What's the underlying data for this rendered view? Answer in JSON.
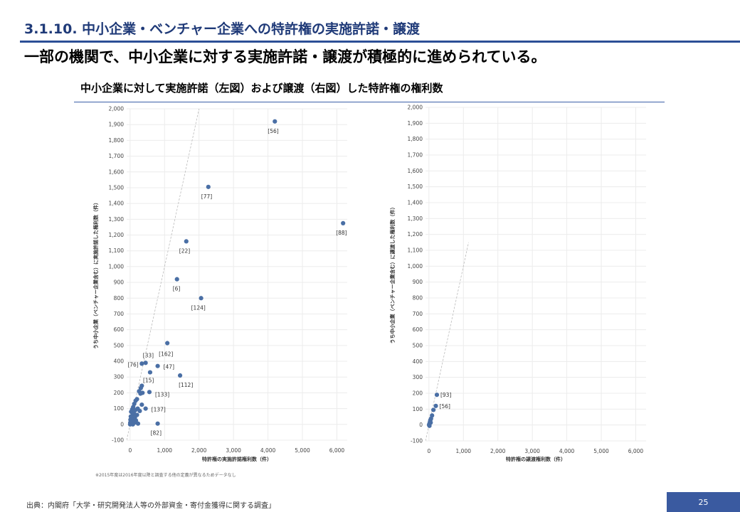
{
  "header": {
    "section_title": "3.1.10. 中小企業・ベンチャー企業への特許権の実施許諾・譲渡",
    "headline": "一部の機関で、中小企業に対する実施許諾・譲渡が積極的に進められている。",
    "chart_heading": "中小企業に対して実施許諾（左図）および譲渡（右図）した特許権の権利数"
  },
  "footer": {
    "note": "※2015年度は2016年度以降と調査する他の定義が異なるためデータなし",
    "source": "出典：内閣府「大学・研究開発法人等の外部資金・寄付金獲得に関する調査」",
    "page_number": "25"
  },
  "colors": {
    "title": "#1f3a78",
    "rule": "#2c4f96",
    "marker": "#4a6fa5",
    "page_badge": "#3a5aa0"
  },
  "chart_data": [
    {
      "type": "scatter",
      "xlabel": "特許権の実施許諾権利数（件）",
      "ylabel": "うち中小企業（ベンチャー企業含む）に実施許諾した権利数（件）",
      "xlim": [
        -100,
        6300
      ],
      "ylim": [
        -100,
        2000
      ],
      "xticks": [
        0,
        1000,
        2000,
        3000,
        4000,
        5000,
        6000
      ],
      "xtick_labels": [
        "0",
        "1,000",
        "2,000",
        "3,000",
        "4,000",
        "5,000",
        "6,000"
      ],
      "yticks": [
        -100,
        0,
        100,
        200,
        300,
        400,
        500,
        600,
        700,
        800,
        900,
        1000,
        1100,
        1200,
        1300,
        1400,
        1500,
        1600,
        1700,
        1800,
        1900,
        2000
      ],
      "ytick_labels": [
        "-100",
        "0",
        "100",
        "200",
        "300",
        "400",
        "500",
        "600",
        "700",
        "800",
        "900",
        "1,000",
        "1,100",
        "1,200",
        "1,300",
        "1,400",
        "1,500",
        "1,600",
        "1,700",
        "1,800",
        "1,900",
        "2,000"
      ],
      "grid": true,
      "reference_line": "y = x",
      "points": [
        {
          "x": 4200,
          "y": 1920,
          "label": "[56]"
        },
        {
          "x": 2270,
          "y": 1505,
          "label": "[77]"
        },
        {
          "x": 6180,
          "y": 1275,
          "label": "[88]"
        },
        {
          "x": 1630,
          "y": 1160,
          "label": "[22]"
        },
        {
          "x": 1360,
          "y": 920,
          "label": "[6]"
        },
        {
          "x": 2060,
          "y": 800,
          "label": "[124]"
        },
        {
          "x": 1080,
          "y": 515,
          "label": "[162]"
        },
        {
          "x": 450,
          "y": 390,
          "label": "[33]"
        },
        {
          "x": 340,
          "y": 385,
          "label": "[76]"
        },
        {
          "x": 800,
          "y": 370,
          "label": "[47]"
        },
        {
          "x": 580,
          "y": 330,
          "label": "[15]"
        },
        {
          "x": 1450,
          "y": 310,
          "label": "[112]"
        },
        {
          "x": 560,
          "y": 205,
          "label": "[133]"
        },
        {
          "x": 450,
          "y": 100,
          "label": "[137]"
        },
        {
          "x": 800,
          "y": 5,
          "label": "[82]"
        },
        {
          "x": 340,
          "y": 245,
          "label": ""
        },
        {
          "x": 310,
          "y": 230,
          "label": ""
        },
        {
          "x": 260,
          "y": 210,
          "label": ""
        },
        {
          "x": 360,
          "y": 200,
          "label": ""
        },
        {
          "x": 300,
          "y": 195,
          "label": ""
        },
        {
          "x": 200,
          "y": 160,
          "label": ""
        },
        {
          "x": 160,
          "y": 150,
          "label": ""
        },
        {
          "x": 120,
          "y": 130,
          "label": ""
        },
        {
          "x": 340,
          "y": 125,
          "label": ""
        },
        {
          "x": 90,
          "y": 110,
          "label": ""
        },
        {
          "x": 220,
          "y": 100,
          "label": ""
        },
        {
          "x": 60,
          "y": 95,
          "label": ""
        },
        {
          "x": 150,
          "y": 90,
          "label": ""
        },
        {
          "x": 280,
          "y": 85,
          "label": ""
        },
        {
          "x": 30,
          "y": 80,
          "label": ""
        },
        {
          "x": 110,
          "y": 70,
          "label": ""
        },
        {
          "x": 200,
          "y": 60,
          "label": ""
        },
        {
          "x": 60,
          "y": 55,
          "label": ""
        },
        {
          "x": 20,
          "y": 50,
          "label": ""
        },
        {
          "x": 140,
          "y": 45,
          "label": ""
        },
        {
          "x": 90,
          "y": 40,
          "label": ""
        },
        {
          "x": 40,
          "y": 35,
          "label": ""
        },
        {
          "x": 10,
          "y": 30,
          "label": ""
        },
        {
          "x": 170,
          "y": 25,
          "label": ""
        },
        {
          "x": 70,
          "y": 20,
          "label": ""
        },
        {
          "x": 30,
          "y": 15,
          "label": ""
        },
        {
          "x": 5,
          "y": 10,
          "label": ""
        },
        {
          "x": 120,
          "y": 10,
          "label": ""
        },
        {
          "x": 50,
          "y": 5,
          "label": ""
        },
        {
          "x": 15,
          "y": 3,
          "label": ""
        },
        {
          "x": 2,
          "y": 0,
          "label": ""
        },
        {
          "x": 80,
          "y": 0,
          "label": ""
        },
        {
          "x": 230,
          "y": 5,
          "label": ""
        },
        {
          "x": 20,
          "y": 20,
          "label": ""
        }
      ]
    },
    {
      "type": "scatter",
      "xlabel": "特許権の譲渡権利数（件）",
      "ylabel": "うち中小企業（ベンチャー企業含む）に譲渡した権利数（件）",
      "xlim": [
        -100,
        6300
      ],
      "ylim": [
        -100,
        2000
      ],
      "xticks": [
        0,
        1000,
        2000,
        3000,
        4000,
        5000,
        6000
      ],
      "xtick_labels": [
        "0",
        "1,000",
        "2,000",
        "3,000",
        "4,000",
        "5,000",
        "6,000"
      ],
      "yticks": [
        -100,
        0,
        100,
        200,
        300,
        400,
        500,
        600,
        700,
        800,
        900,
        1000,
        1100,
        1200,
        1300,
        1400,
        1500,
        1600,
        1700,
        1800,
        1900,
        2000
      ],
      "ytick_labels": [
        "-100",
        "0",
        "100",
        "200",
        "300",
        "400",
        "500",
        "600",
        "700",
        "800",
        "900",
        "1,000",
        "1,100",
        "1,200",
        "1,300",
        "1,400",
        "1,500",
        "1,600",
        "1,700",
        "1,800",
        "1,900",
        "2,000"
      ],
      "grid": true,
      "reference_line": "y = x",
      "points": [
        {
          "x": 230,
          "y": 190,
          "label": "[93]"
        },
        {
          "x": 200,
          "y": 120,
          "label": "[56]"
        },
        {
          "x": 130,
          "y": 95,
          "label": ""
        },
        {
          "x": 90,
          "y": 60,
          "label": ""
        },
        {
          "x": 60,
          "y": 40,
          "label": ""
        },
        {
          "x": 40,
          "y": 30,
          "label": ""
        },
        {
          "x": 30,
          "y": 20,
          "label": ""
        },
        {
          "x": 20,
          "y": 10,
          "label": ""
        },
        {
          "x": 10,
          "y": 5,
          "label": ""
        },
        {
          "x": 5,
          "y": 0,
          "label": ""
        },
        {
          "x": 15,
          "y": -5,
          "label": ""
        },
        {
          "x": 50,
          "y": 15,
          "label": ""
        }
      ]
    }
  ]
}
